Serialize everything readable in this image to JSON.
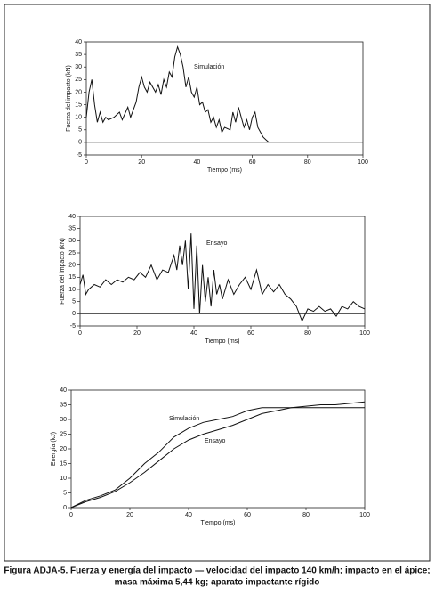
{
  "chart_data": [
    {
      "type": "line",
      "annotation": "Simulación",
      "xlabel": "Tiempo (ms)",
      "ylabel": "Fuerza del impacto (kN)",
      "x": [
        0,
        1,
        2,
        3,
        4,
        5,
        6,
        7,
        8,
        10,
        12,
        13,
        15,
        16,
        18,
        19,
        20,
        21,
        22,
        23,
        25,
        26,
        27,
        28,
        29,
        30,
        31,
        32,
        33,
        34,
        35,
        36,
        37,
        38,
        39,
        40,
        41,
        42,
        43,
        44,
        45,
        46,
        47,
        48,
        49,
        50,
        52,
        53,
        54,
        55,
        56,
        57,
        58,
        59,
        60,
        61,
        62,
        63,
        64,
        65,
        66
      ],
      "values": [
        10,
        20,
        25,
        15,
        8,
        12,
        8,
        10,
        9,
        10,
        12,
        9,
        14,
        10,
        16,
        22,
        26,
        22,
        20,
        24,
        20,
        23,
        19,
        25,
        22,
        28,
        26,
        34,
        38,
        35,
        30,
        22,
        26,
        20,
        18,
        22,
        15,
        16,
        12,
        13,
        8,
        10,
        6,
        9,
        4,
        6,
        5,
        12,
        8,
        14,
        10,
        6,
        9,
        5,
        10,
        12,
        6,
        4,
        2,
        1,
        0
      ],
      "xlim": [
        0,
        100
      ],
      "ylim": [
        -5,
        40
      ],
      "xticks": [
        0,
        20,
        40,
        60,
        80,
        100
      ],
      "yticks": [
        40,
        35,
        30,
        25,
        20,
        15,
        10,
        5,
        0,
        -5
      ]
    },
    {
      "type": "line",
      "annotation": "Ensayo",
      "xlabel": "Tiempo (ms)",
      "ylabel": "Fuerza del impacto (kN)",
      "x": [
        0,
        1,
        2,
        3,
        5,
        7,
        9,
        11,
        13,
        15,
        17,
        19,
        21,
        23,
        25,
        27,
        29,
        31,
        33,
        34,
        35,
        36,
        37,
        38,
        39,
        40,
        41,
        42,
        43,
        44,
        45,
        46,
        47,
        48,
        49,
        50,
        52,
        54,
        56,
        58,
        60,
        62,
        64,
        66,
        68,
        70,
        72,
        74,
        76,
        78,
        80,
        82,
        84,
        86,
        88,
        90,
        92,
        94,
        96,
        98,
        100
      ],
      "values": [
        12,
        16,
        8,
        10,
        12,
        11,
        14,
        12,
        14,
        13,
        15,
        14,
        17,
        15,
        20,
        14,
        18,
        17,
        24,
        18,
        28,
        20,
        30,
        10,
        33,
        2,
        28,
        0,
        20,
        5,
        15,
        3,
        18,
        8,
        12,
        6,
        14,
        8,
        12,
        15,
        10,
        18,
        8,
        12,
        9,
        12,
        8,
        6,
        3,
        -3,
        2,
        1,
        3,
        1,
        2,
        -1,
        3,
        2,
        5,
        3,
        2
      ],
      "xlim": [
        0,
        100
      ],
      "ylim": [
        -5,
        40
      ],
      "xticks": [
        0,
        20,
        40,
        60,
        80,
        100
      ],
      "yticks": [
        40,
        35,
        30,
        25,
        20,
        15,
        10,
        5,
        0,
        -5
      ]
    },
    {
      "type": "line",
      "xlabel": "Tiempo (ms)",
      "ylabel": "Energía (kJ)",
      "x": [
        0,
        5,
        10,
        15,
        20,
        25,
        30,
        35,
        40,
        45,
        50,
        55,
        60,
        65,
        70,
        75,
        80,
        85,
        90,
        95,
        100
      ],
      "series": [
        {
          "name": "Simulación",
          "color": "#111111",
          "values": [
            0,
            2.5,
            4,
            6,
            10,
            15,
            19,
            24,
            27,
            29,
            30,
            31,
            33,
            34,
            34,
            34,
            34,
            34,
            34,
            34,
            34
          ]
        },
        {
          "name": "Ensayo",
          "color": "#111111",
          "values": [
            0,
            2,
            3.5,
            5.5,
            8.5,
            12,
            16,
            20,
            23,
            25,
            26.5,
            28,
            30,
            32,
            33,
            34,
            34.5,
            35,
            35,
            35.5,
            36
          ]
        }
      ],
      "xlim": [
        0,
        100
      ],
      "ylim": [
        0,
        40
      ],
      "xticks": [
        0,
        20,
        40,
        60,
        80,
        100
      ],
      "yticks": [
        40,
        35,
        30,
        25,
        20,
        15,
        10,
        5,
        0
      ]
    }
  ],
  "caption": [
    "Figura ADJA-5.  Fuerza y energía del impacto — velocidad del impacto 140 km/h; impacto en el ápice;",
    "masa máxima 5,44 kg; aparato impactante rígido"
  ]
}
